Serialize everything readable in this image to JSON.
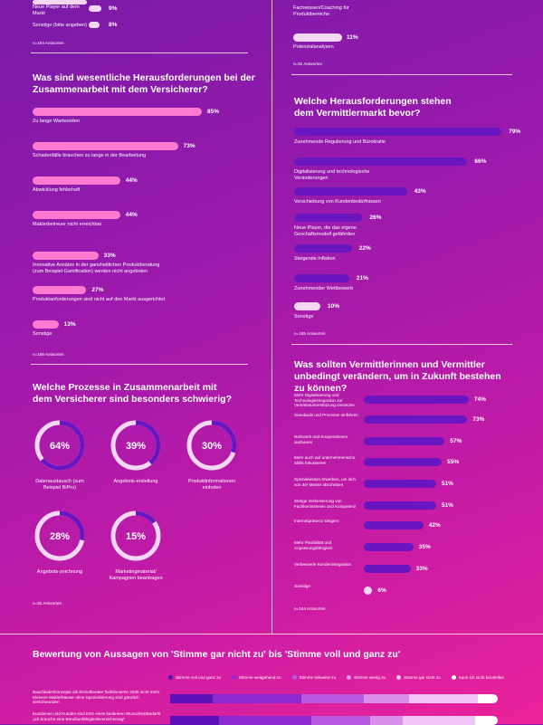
{
  "top_left": {
    "items": [
      {
        "label": "Neue Player auf dem Markt",
        "pct": "9%",
        "value": 9
      },
      {
        "label": "Sonstige (bitte angeben)",
        "pct": "8%",
        "value": 8
      }
    ],
    "note": "n=184 Antworten"
  },
  "top_right": {
    "items": [
      {
        "label": "Fachwissen/Coaching für Produktbereiche",
        "pct": "",
        "value": 0
      },
      {
        "label": "Potenzialanalysen",
        "pct": "11%",
        "value": 11
      }
    ],
    "note": "n=92 Antworten"
  },
  "challenges_insurer": {
    "title": "Was sind wesentliche Herausforderungen bei der Zusammenarbeit mit dem Versicherer?",
    "items": [
      {
        "label": "Zu lange Wartezeiten",
        "pct": "85%",
        "value": 85
      },
      {
        "label": "Schadenfälle brauchen zu lange in der Bearbeitung",
        "pct": "73%",
        "value": 73
      },
      {
        "label": "Abwicklung fehlerhaft",
        "pct": "44%",
        "value": 44
      },
      {
        "label": "Maklerbetreuer nicht erreichbar",
        "pct": "44%",
        "value": 44
      },
      {
        "label": "Innovative Ansätze in der ganzheitlichen Produktberatung (zum Beispiel Gamification) werden nicht angeboten",
        "pct": "33%",
        "value": 33
      },
      {
        "label": "Produktanforderungen sind nicht auf den Markt ausgerichtet",
        "pct": "27%",
        "value": 27
      },
      {
        "label": "Sonstige",
        "pct": "13%",
        "value": 13
      }
    ],
    "note": "n=185 Antworten"
  },
  "challenges_market": {
    "title": "Welche Herausforderungen stehen dem Vermittlermarkt bevor?",
    "items": [
      {
        "label": "Zunehmende Regulierung und Bürokratie",
        "pct": "79%",
        "value": 79
      },
      {
        "label": "Digitalisierung und technologische Veränderungen",
        "pct": "66%",
        "value": 66
      },
      {
        "label": "Verschiebung von Kundenbedürfnissen",
        "pct": "43%",
        "value": 43
      },
      {
        "label": "Neue Player, die das eigene Geschäftsmodell gefährden",
        "pct": "26%",
        "value": 26
      },
      {
        "label": "Steigende Inflation",
        "pct": "22%",
        "value": 22
      },
      {
        "label": "Zunehmender Wettbewerb",
        "pct": "21%",
        "value": 21
      },
      {
        "label": "Sonstige",
        "pct": "10%",
        "value": 10
      }
    ],
    "note": "n=185 Antworten"
  },
  "processes": {
    "title": "Welche Prozesse in Zusammenarbeit mit dem Versicherer sind besonders schwierig?",
    "donuts": [
      {
        "pct": "64%",
        "value": 64,
        "label": "Datenaustausch (zum Beispiel BiPro)"
      },
      {
        "pct": "39%",
        "value": 39,
        "label": "Angebots-erstellung"
      },
      {
        "pct": "30%",
        "value": 30,
        "label": "Produktinformationen einholen"
      },
      {
        "pct": "28%",
        "value": 28,
        "label": "Angebots-zeichnung"
      },
      {
        "pct": "15%",
        "value": 15,
        "label": "Marketingmaterial/ Kampagnen beantragen"
      }
    ],
    "note": "n=92 Antworten"
  },
  "change": {
    "title": "Was sollten Vermittlerinnen und Vermittler unbedingt verändern, um in Zukunft bestehen zu können?",
    "items": [
      {
        "label": "Mehr Digitalisierung und Technologieintegration zur Vertriebsunterstützung einsetzen",
        "pct": "74%",
        "value": 74
      },
      {
        "label": "Standards und Prozesse einführen",
        "pct": "73%",
        "value": 73
      },
      {
        "label": "Netzwerk und Kooperationen ausbauen",
        "pct": "57%",
        "value": 57
      },
      {
        "label": "Mehr auch auf unternehmerische Skills fokussieren",
        "pct": "55%",
        "value": 55
      },
      {
        "label": "Spezialwissen erwerben, um sich von der Masse abzuheben",
        "pct": "51%",
        "value": 51
      },
      {
        "label": "Stetige Verbesserung von Fachkenntnissen und Kompetenz",
        "pct": "51%",
        "value": 51
      },
      {
        "label": "Internetpräsenz steigern",
        "pct": "42%",
        "value": 42
      },
      {
        "label": "Mehr Flexibilität und Anpassungsfähigkeit",
        "pct": "35%",
        "value": 35
      },
      {
        "label": "Verbesserte Kundenintegration",
        "pct": "33%",
        "value": 33
      },
      {
        "label": "Sonstige",
        "pct": "6%",
        "value": 6
      }
    ],
    "note": "n=184 Antworten"
  },
  "statements": {
    "title": "Bewertung von Aussagen von 'Stimme gar nicht zu' bis 'Stimme voll und ganz zu'",
    "legend": [
      {
        "label": "Stimme voll und ganz zu",
        "color": "#5a12b8"
      },
      {
        "label": "Stimme weitgehend zu",
        "color": "#8a2ad0"
      },
      {
        "label": "Stimme teilweise zu",
        "color": "#b85ae0"
      },
      {
        "label": "Stimme wenig zu",
        "color": "#d890ec"
      },
      {
        "label": "Stimme gar nicht zu",
        "color": "#f0c4f4"
      },
      {
        "label": "Kann ich nicht beurteilen",
        "color": "#ffffff"
      }
    ],
    "rows": [
      {
        "label": "Bauchladenkonzepte als Einzelberater funktionieren 2030 nicht mehr. Kleinere Maklerhäuser ohne Spezialisierung sind gänzlich verschwunden",
        "segments": [
          13,
          27,
          19,
          14,
          21,
          6
        ]
      },
      {
        "label": "Kundinnen und Kunden sind trotz eines konkreten Wunsches/Bedarfs „ich brauche eine Berufsunfähigkeitsversicherung“",
        "segments": [
          15,
          28,
          18,
          10,
          22,
          7
        ]
      }
    ]
  }
}
